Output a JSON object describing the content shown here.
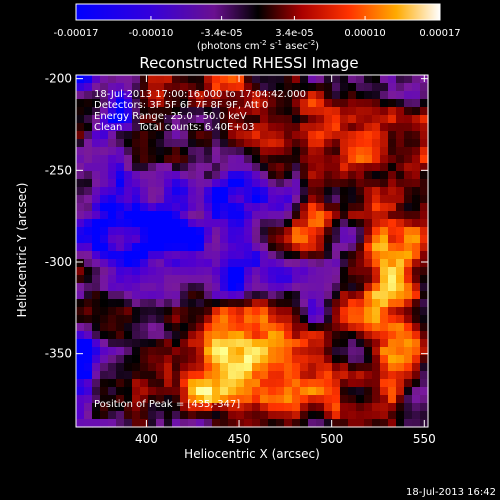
{
  "colorbar": {
    "tick_labels": [
      "-0.00017",
      "-0.00010",
      "-3.4e-05",
      "3.4e-05",
      "0.00010",
      "0.00017"
    ],
    "tick_values": [
      -0.00017,
      -0.0001,
      -3.4e-05,
      3.4e-05,
      0.0001,
      0.00017
    ],
    "range": [
      -0.00017,
      0.00017
    ],
    "unit_base": "(photons cm",
    "unit_exp1": "-2",
    "unit_mid": " s",
    "unit_exp2": "-1",
    "unit_mid2": " asec",
    "unit_exp3": "-2",
    "unit_end": ")"
  },
  "chart_data": {
    "type": "heatmap",
    "title": "Reconstructed RHESSI Image",
    "xlabel": "Heliocentric X (arcsec)",
    "ylabel": "Heliocentric Y (arcsec)",
    "xlim": [
      362,
      552
    ],
    "ylim": [
      -390,
      -198
    ],
    "x_ticks": [
      400,
      450,
      500,
      550
    ],
    "y_ticks": [
      -200,
      -250,
      -300,
      -350
    ],
    "info_lines": [
      "18-Jul-2013 17:00:16.000 to 17:04:42.000",
      "Detectors: 3F 5F 6F 7F 8F 9F, Att 0",
      "Energy Range: 25.0 - 50.0 keV",
      "Clean     Total counts: 6.40E+03"
    ],
    "peak_label": "Position of Peak = [435,-347]",
    "peak": [
      435,
      -347
    ],
    "colormap": [
      "#0000ff",
      "#5500cc",
      "#7a1a9a",
      "#000000",
      "#8a0000",
      "#ff3300",
      "#ffaa00",
      "#ffff88",
      "#ffffff"
    ]
  },
  "footer": {
    "timestamp": "18-Jul-2013 16:42"
  }
}
